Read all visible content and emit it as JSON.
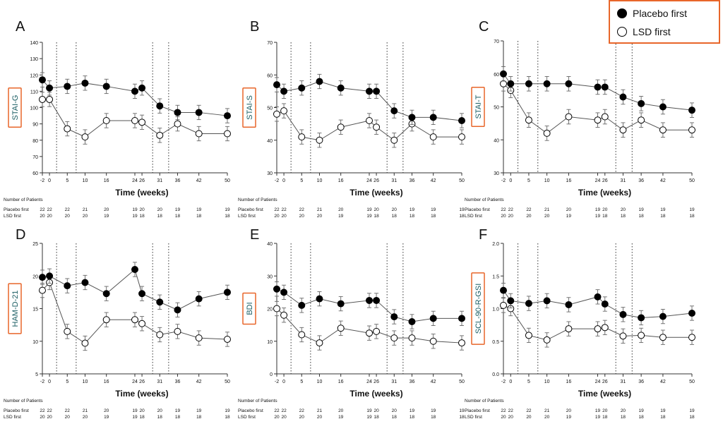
{
  "legend": {
    "items": [
      {
        "label": "Placebo first",
        "marker": "filled"
      },
      {
        "label": "LSD first",
        "marker": "open"
      }
    ]
  },
  "colors": {
    "accent": "#e8662a",
    "line": "#555555",
    "marker": "#000000"
  },
  "table": {
    "heading": "Number of Patients",
    "row_labels": [
      "Placebo first",
      "LSD first"
    ],
    "placebo_first": [
      22,
      22,
      22,
      21,
      20,
      19,
      20,
      20,
      19,
      19,
      19
    ],
    "lsd_first": [
      20,
      20,
      20,
      20,
      19,
      19,
      18,
      18,
      18,
      18,
      18
    ]
  },
  "chart_data": [
    {
      "type": "line",
      "panel": "A",
      "ylabel": "STAI-G",
      "xlabel": "Time (weeks)",
      "x": [
        -2,
        0,
        5,
        10,
        16,
        24,
        26,
        31,
        36,
        42,
        50
      ],
      "x_ticks": [
        "-2",
        "0",
        "5",
        "10",
        "16",
        "24",
        "26",
        "31",
        "36",
        "42",
        "50"
      ],
      "ylim": [
        60,
        140
      ],
      "yticks": [
        60,
        70,
        80,
        90,
        100,
        110,
        120,
        130,
        140
      ],
      "series": [
        {
          "name": "Placebo first",
          "values": [
            117,
            112,
            113,
            115,
            113,
            110,
            112,
            101,
            97,
            97,
            95
          ]
        },
        {
          "name": "LSD first",
          "values": [
            105,
            105,
            87,
            82,
            92,
            92,
            91,
            83,
            90,
            84,
            84
          ]
        }
      ]
    },
    {
      "type": "line",
      "panel": "B",
      "ylabel": "STAI-S",
      "xlabel": "Time (weeks)",
      "x": [
        -2,
        0,
        5,
        10,
        16,
        24,
        26,
        31,
        36,
        42,
        50
      ],
      "x_ticks": [
        "-2",
        "0",
        "5",
        "10",
        "16",
        "24",
        "26",
        "31",
        "36",
        "42",
        "50"
      ],
      "ylim": [
        30,
        70
      ],
      "yticks": [
        30,
        40,
        50,
        60,
        70
      ],
      "series": [
        {
          "name": "Placebo first",
          "values": [
            57,
            55,
            56,
            58,
            56,
            55,
            55,
            49,
            47,
            47,
            46
          ]
        },
        {
          "name": "LSD first",
          "values": [
            48,
            49,
            41,
            40,
            44,
            46,
            44,
            40,
            45,
            41,
            41
          ]
        }
      ]
    },
    {
      "type": "line",
      "panel": "C",
      "ylabel": "STAI-T",
      "xlabel": "Time (weeks)",
      "x": [
        -2,
        0,
        5,
        10,
        16,
        24,
        26,
        31,
        36,
        42,
        50
      ],
      "x_ticks": [
        "-2",
        "0",
        "5",
        "10",
        "16",
        "24",
        "26",
        "31",
        "36",
        "42",
        "50"
      ],
      "ylim": [
        30,
        70
      ],
      "yticks": [
        30,
        40,
        50,
        60,
        70
      ],
      "series": [
        {
          "name": "Placebo first",
          "values": [
            60,
            57,
            57,
            57,
            57,
            56,
            56,
            53,
            51,
            50,
            49
          ]
        },
        {
          "name": "LSD first",
          "values": [
            57,
            55,
            46,
            42,
            47,
            46,
            47,
            43,
            46,
            43,
            43
          ]
        }
      ]
    },
    {
      "type": "line",
      "panel": "D",
      "ylabel": "HAM-D-21",
      "xlabel": "Time (weeks)",
      "x": [
        -2,
        0,
        5,
        10,
        16,
        24,
        26,
        31,
        36,
        42,
        50
      ],
      "x_ticks": [
        "-2",
        "0",
        "5",
        "10",
        "16",
        "24",
        "26",
        "31",
        "36",
        "42",
        "50"
      ],
      "ylim": [
        5,
        25
      ],
      "yticks": [
        5,
        10,
        15,
        20,
        25
      ],
      "series": [
        {
          "name": "Placebo first",
          "values": [
            19.8,
            20,
            18.5,
            19,
            17.3,
            21,
            17.3,
            16,
            14.8,
            16.5,
            17.5
          ]
        },
        {
          "name": "LSD first",
          "values": [
            17.8,
            19,
            11.5,
            9.7,
            13.3,
            13.3,
            12.7,
            11,
            11.5,
            10.5,
            10.3
          ]
        }
      ]
    },
    {
      "type": "line",
      "panel": "E",
      "ylabel": "BDI",
      "xlabel": "Time (weeks)",
      "x": [
        -2,
        0,
        5,
        10,
        16,
        24,
        26,
        31,
        36,
        42,
        50
      ],
      "x_ticks": [
        "-2",
        "0",
        "5",
        "10",
        "16",
        "24",
        "26",
        "31",
        "36",
        "42",
        "50"
      ],
      "ylim": [
        0,
        40
      ],
      "yticks": [
        0,
        10,
        20,
        30,
        40
      ],
      "series": [
        {
          "name": "Placebo first",
          "values": [
            26,
            25,
            21,
            23,
            21.5,
            22.5,
            22.5,
            17.5,
            16,
            17,
            17
          ]
        },
        {
          "name": "LSD first",
          "values": [
            20,
            18,
            12,
            9.5,
            14,
            12.5,
            13,
            11,
            11,
            10,
            9.5
          ]
        }
      ]
    },
    {
      "type": "line",
      "panel": "F",
      "ylabel": "SCL-90-R-GSI",
      "xlabel": "Time (weeks)",
      "x": [
        -2,
        0,
        5,
        10,
        16,
        24,
        26,
        31,
        36,
        42,
        50
      ],
      "x_ticks": [
        "-2",
        "0",
        "5",
        "10",
        "16",
        "24",
        "26",
        "31",
        "36",
        "42",
        "50"
      ],
      "ylim": [
        0.0,
        2.0
      ],
      "yticks": [
        "0.0",
        "0.5",
        "1.0",
        "1.5",
        "2.0"
      ],
      "series": [
        {
          "name": "Placebo first",
          "values": [
            1.28,
            1.12,
            1.08,
            1.12,
            1.06,
            1.18,
            1.07,
            0.91,
            0.86,
            0.88,
            0.93
          ]
        },
        {
          "name": "LSD first",
          "values": [
            1.05,
            1.0,
            0.59,
            0.52,
            0.69,
            0.69,
            0.71,
            0.58,
            0.59,
            0.56,
            0.56
          ]
        }
      ]
    }
  ]
}
